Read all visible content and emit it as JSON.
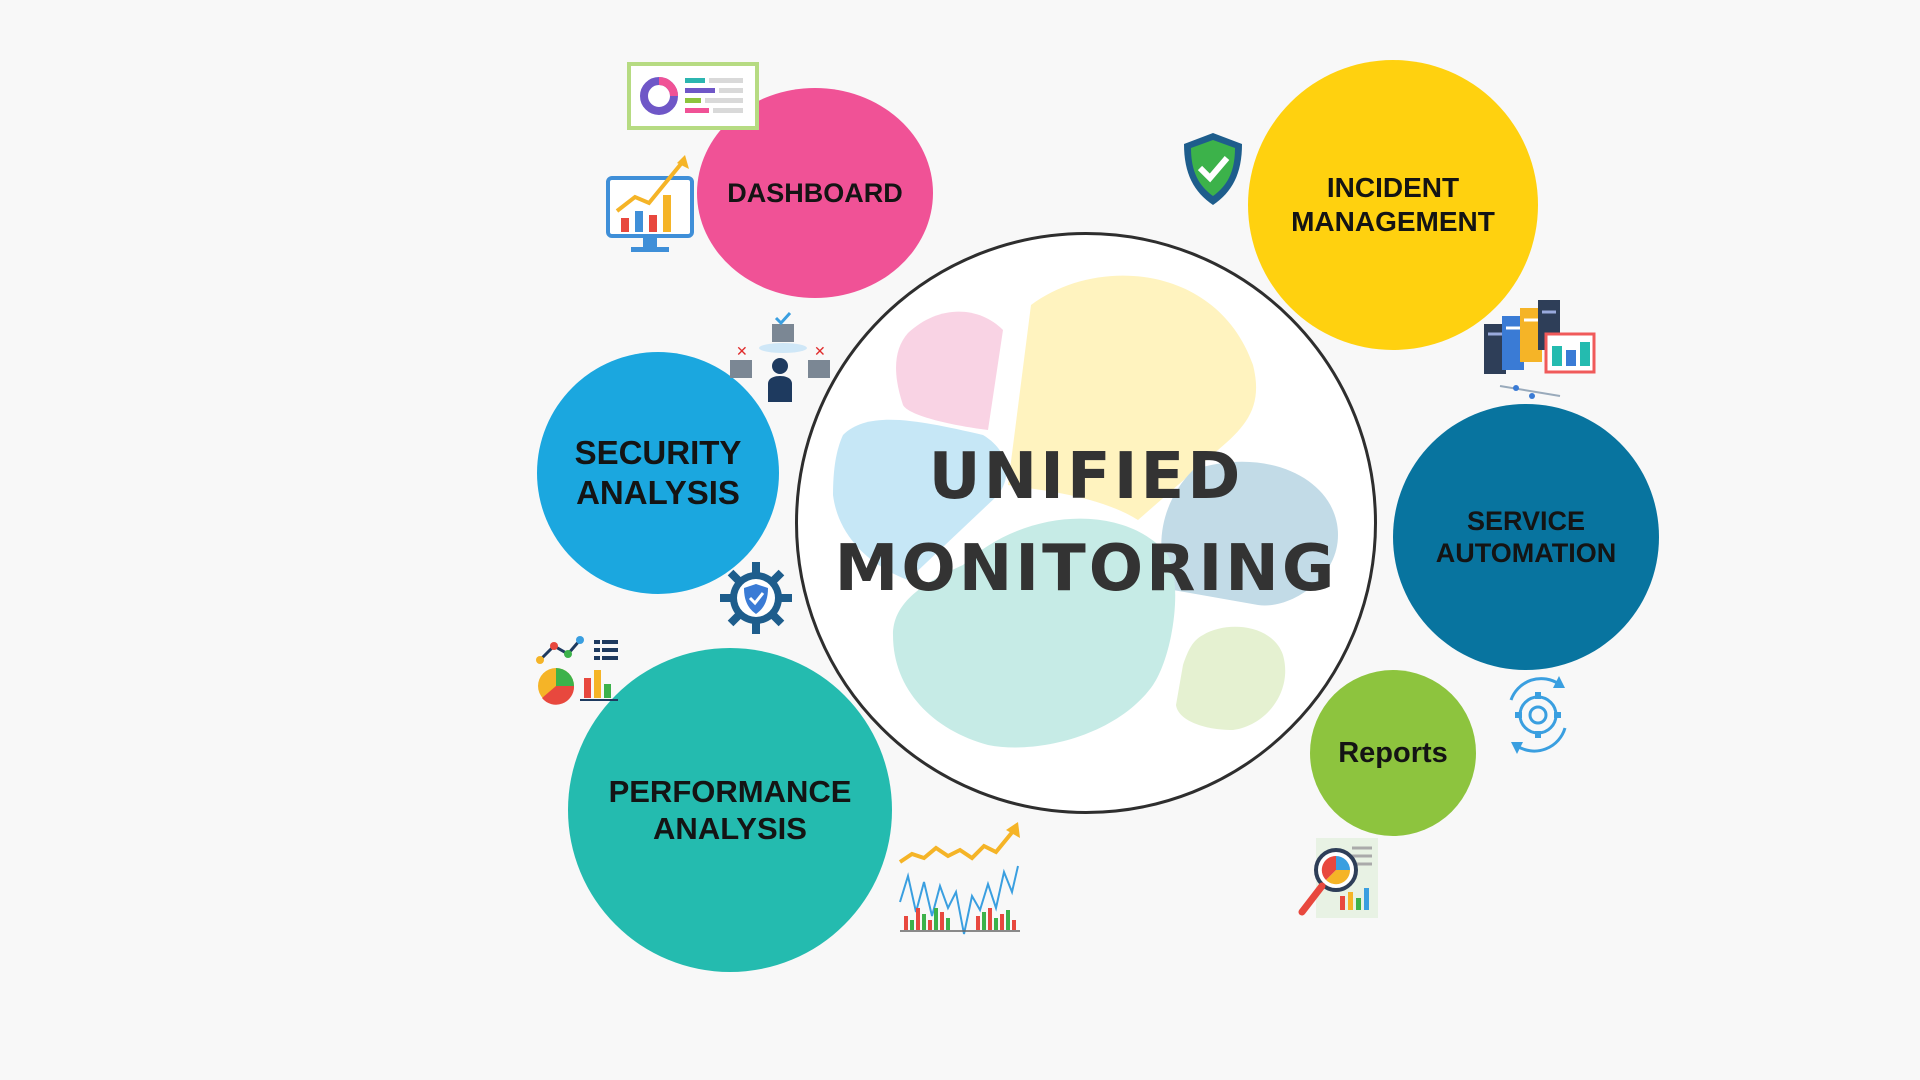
{
  "center": {
    "line1": "UNIFIED",
    "line2": "MONITORING"
  },
  "nodes": {
    "dashboard": {
      "label": "DASHBOARD",
      "color": "#F05296"
    },
    "incident": {
      "line1": "INCIDENT",
      "line2": "MANAGEMENT",
      "color": "#FFD10F"
    },
    "security": {
      "line1": "SECURITY",
      "line2": "ANALYSIS",
      "color": "#1BA7DF"
    },
    "service": {
      "line1": "SERVICE",
      "line2": "AUTOMATION",
      "color": "#08749F"
    },
    "performance": {
      "line1": "PERFORMANCE",
      "line2": "ANALYSIS",
      "color": "#24BBAF"
    },
    "reports": {
      "label": "Reports",
      "color": "#8DC43E"
    }
  },
  "icons": [
    "dashboard-card-icon",
    "growth-monitor-icon",
    "shield-check-icon",
    "server-rack-icon",
    "org-chart-icon",
    "security-gear-icon",
    "analytics-mix-icon",
    "trend-chart-icon",
    "automation-gear-icon",
    "report-search-icon"
  ]
}
